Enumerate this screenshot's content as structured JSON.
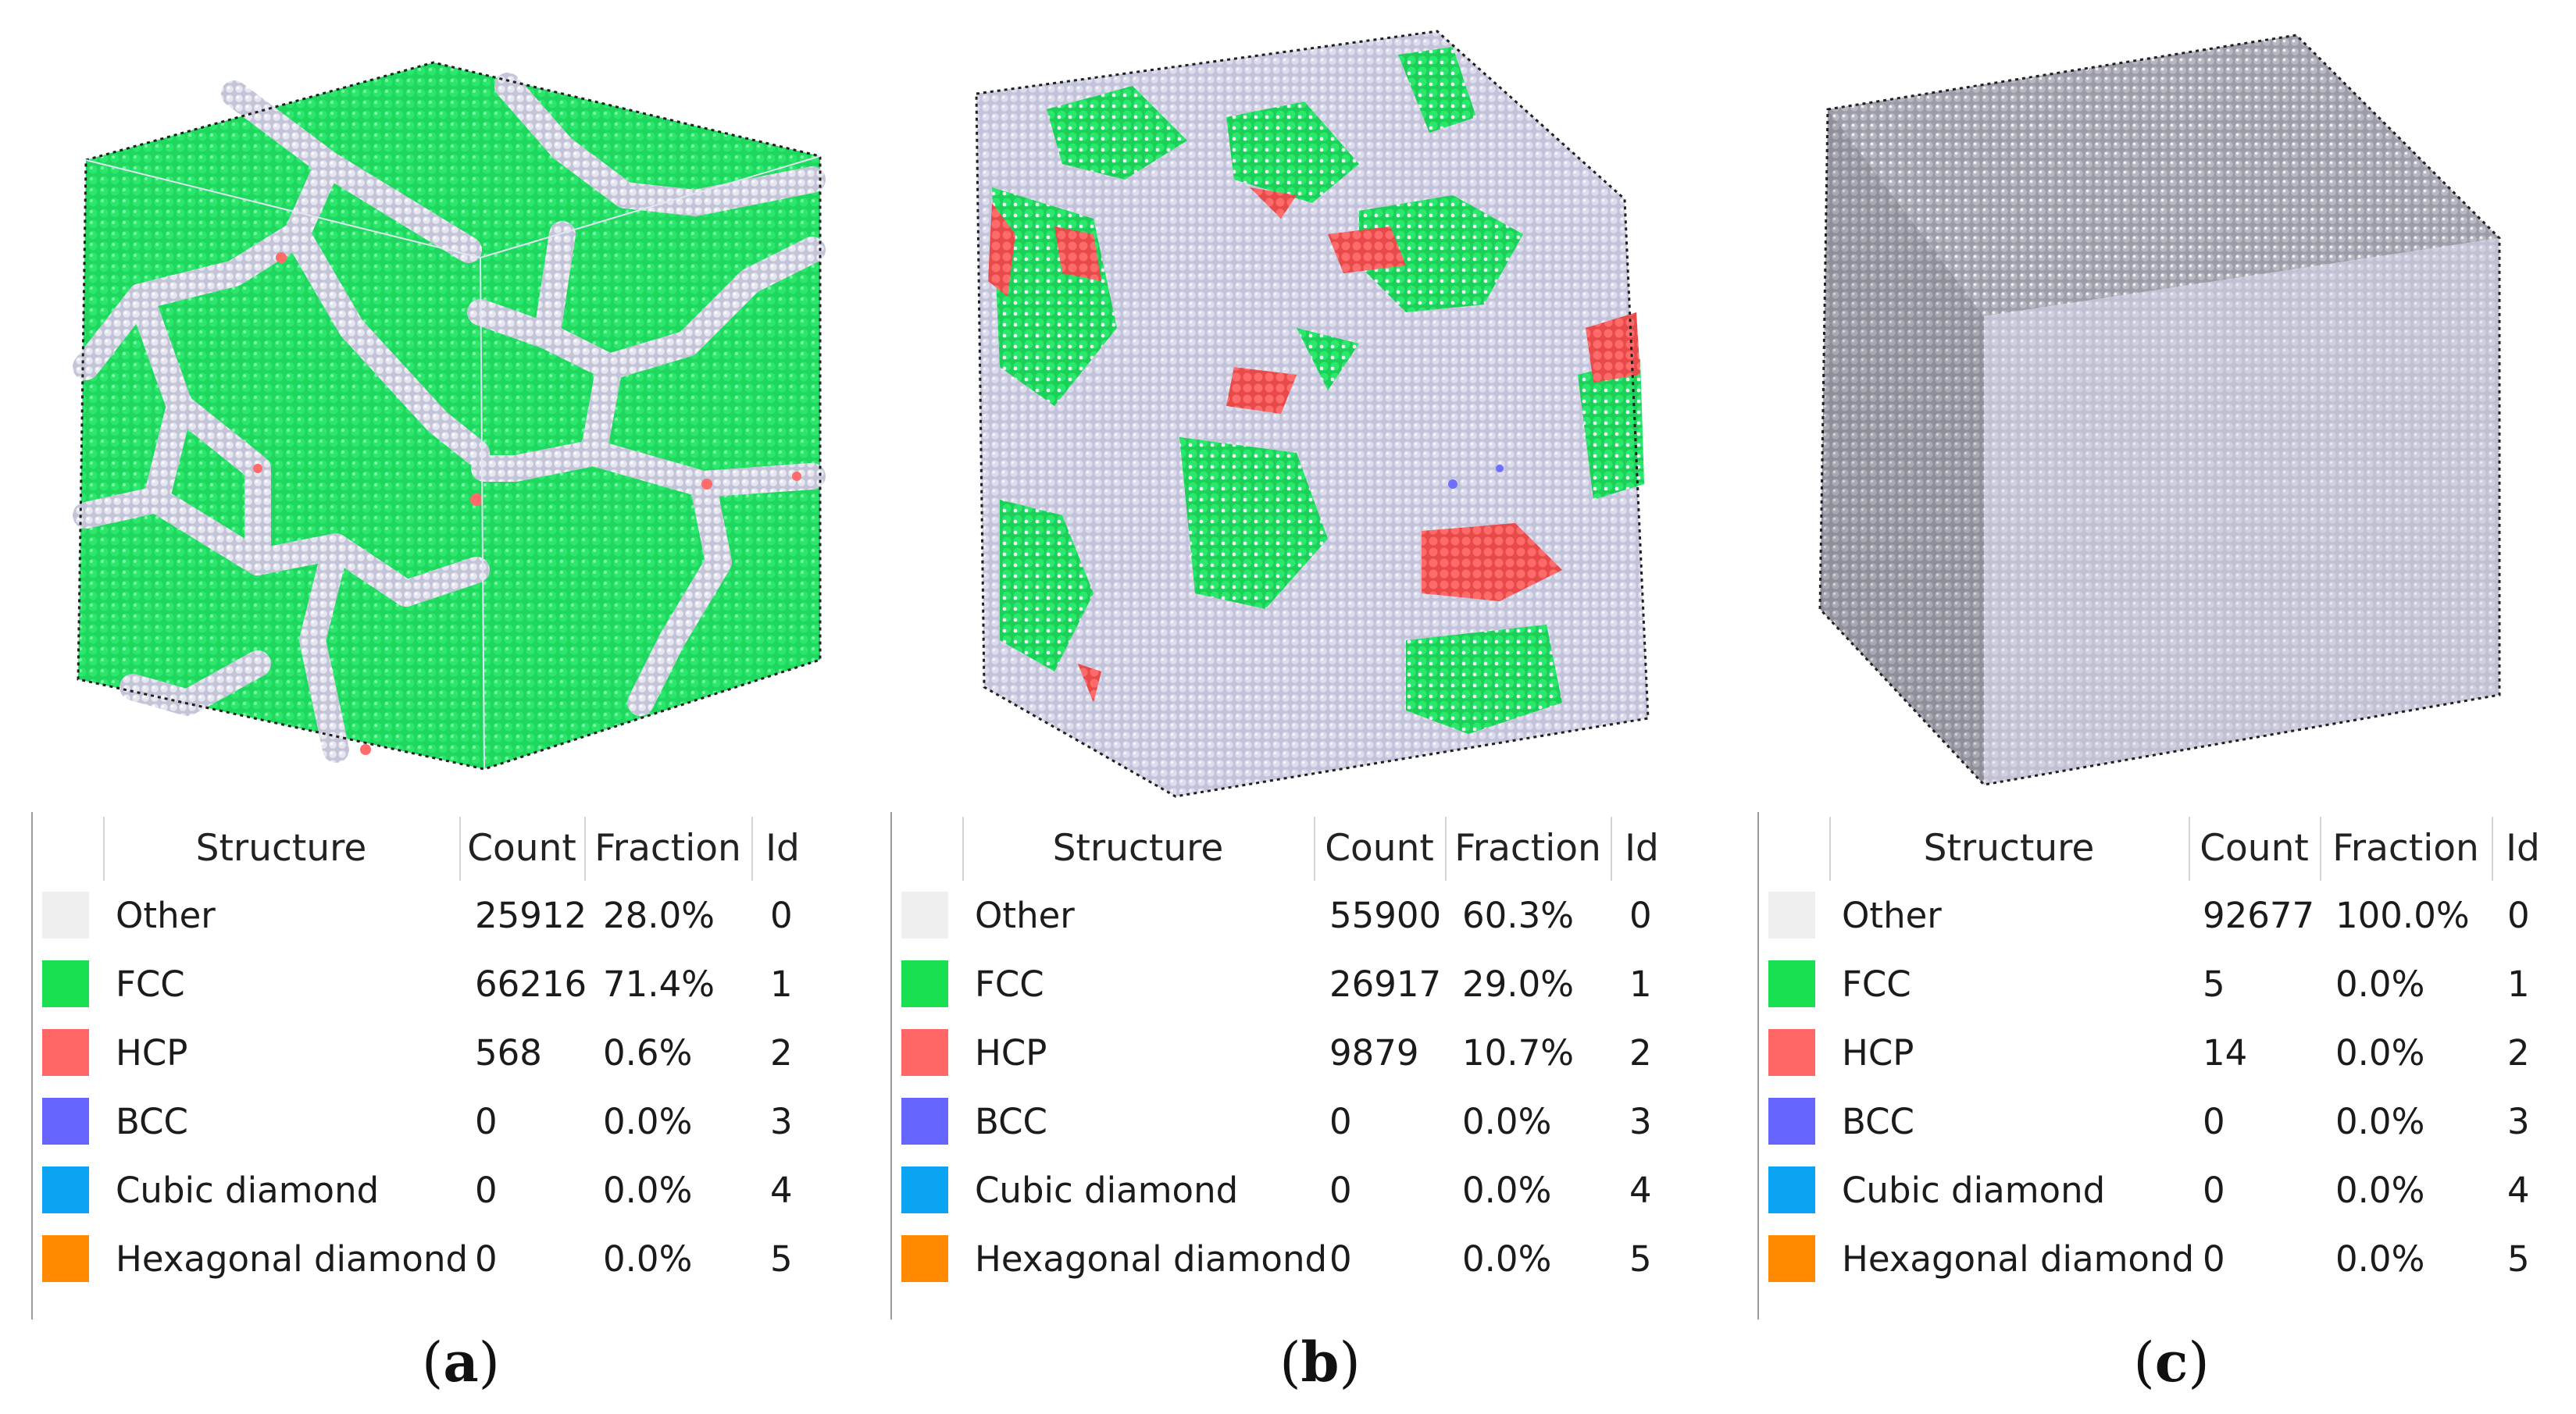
{
  "colors": {
    "Other": "#efefef",
    "FCC": "#19e050",
    "HCP": "#ff6666",
    "BCC": "#6666ff",
    "Cubic diamond": "#0aa4f2",
    "Hexagonal diamond": "#ff8a00",
    "grain": "#20d862",
    "grain_dark": "#0faa45",
    "boundary": "#cfcfe2",
    "amorphous": "#c8c8d8"
  },
  "columns": [
    "Structure",
    "Count",
    "Fraction",
    "Id"
  ],
  "panels": [
    {
      "caption": "a",
      "rows": [
        {
          "structure": "Other",
          "count": "25912",
          "fraction": "28.0%",
          "id": "0"
        },
        {
          "structure": "FCC",
          "count": "66216",
          "fraction": "71.4%",
          "id": "1"
        },
        {
          "structure": "HCP",
          "count": "568",
          "fraction": "0.6%",
          "id": "2"
        },
        {
          "structure": "BCC",
          "count": "0",
          "fraction": "0.0%",
          "id": "3"
        },
        {
          "structure": "Cubic diamond",
          "count": "0",
          "fraction": "0.0%",
          "id": "4"
        },
        {
          "structure": "Hexagonal diamond",
          "count": "0",
          "fraction": "0.0%",
          "id": "5"
        }
      ]
    },
    {
      "caption": "b",
      "rows": [
        {
          "structure": "Other",
          "count": "55900",
          "fraction": "60.3%",
          "id": "0"
        },
        {
          "structure": "FCC",
          "count": "26917",
          "fraction": "29.0%",
          "id": "1"
        },
        {
          "structure": "HCP",
          "count": "9879",
          "fraction": "10.7%",
          "id": "2"
        },
        {
          "structure": "BCC",
          "count": "0",
          "fraction": "0.0%",
          "id": "3"
        },
        {
          "structure": "Cubic diamond",
          "count": "0",
          "fraction": "0.0%",
          "id": "4"
        },
        {
          "structure": "Hexagonal diamond",
          "count": "0",
          "fraction": "0.0%",
          "id": "5"
        }
      ]
    },
    {
      "caption": "c",
      "rows": [
        {
          "structure": "Other",
          "count": "92677",
          "fraction": "100.0%",
          "id": "0"
        },
        {
          "structure": "FCC",
          "count": "5",
          "fraction": "0.0%",
          "id": "1"
        },
        {
          "structure": "HCP",
          "count": "14",
          "fraction": "0.0%",
          "id": "2"
        },
        {
          "structure": "BCC",
          "count": "0",
          "fraction": "0.0%",
          "id": "3"
        },
        {
          "structure": "Cubic diamond",
          "count": "0",
          "fraction": "0.0%",
          "id": "4"
        },
        {
          "structure": "Hexagonal diamond",
          "count": "0",
          "fraction": "0.0%",
          "id": "5"
        }
      ]
    }
  ]
}
